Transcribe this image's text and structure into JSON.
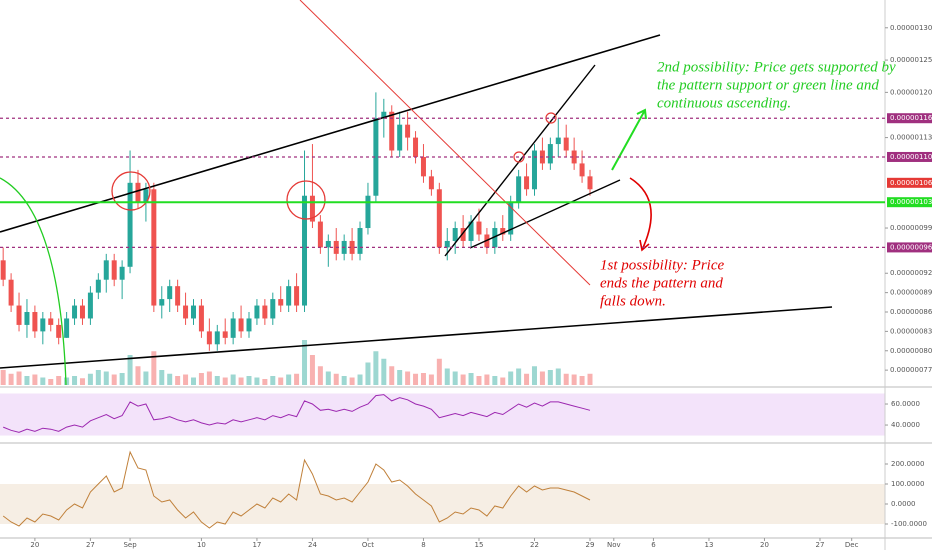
{
  "chart_data": {
    "type": "candlestick",
    "x": [
      -4,
      -3,
      -2,
      -1,
      0,
      1,
      2,
      3,
      4,
      5,
      6,
      7,
      8,
      9,
      10,
      11,
      12,
      13,
      14,
      15,
      16,
      17,
      18,
      19,
      20,
      21,
      22,
      23,
      24,
      25,
      26,
      27,
      28,
      29,
      30,
      31,
      32,
      33,
      34,
      35,
      36,
      37,
      38,
      39,
      40,
      41,
      42,
      43,
      44,
      45,
      46,
      47,
      48,
      49,
      50,
      51,
      52,
      53,
      54,
      55,
      56,
      57,
      58,
      59,
      60,
      61,
      62,
      63,
      64,
      65,
      66,
      67,
      68,
      69,
      70
    ],
    "open": [
      9.4e-07,
      9.1e-07,
      8.7e-07,
      8.4e-07,
      8.6e-07,
      8.3e-07,
      8.5e-07,
      8.4e-07,
      8.2e-07,
      8.5e-07,
      8.7e-07,
      8.5e-07,
      8.9e-07,
      9.1e-07,
      9.4e-07,
      9.1e-07,
      9.3e-07,
      1.06e-06,
      1.03e-06,
      1.05e-06,
      8.7e-07,
      8.8e-07,
      9e-07,
      8.7e-07,
      8.5e-07,
      8.7e-07,
      8.3e-07,
      8.1e-07,
      8.3e-07,
      8.2e-07,
      8.5e-07,
      8.3e-07,
      8.5e-07,
      8.7e-07,
      8.5e-07,
      8.8e-07,
      8.7e-07,
      9e-07,
      8.7e-07,
      1.04e-06,
      1e-06,
      9.6e-07,
      9.7e-07,
      9.5e-07,
      9.7e-07,
      9.5e-07,
      9.9e-07,
      1.04e-06,
      1.16e-06,
      1.17e-06,
      1.11e-06,
      1.15e-06,
      1.13e-06,
      1.1e-06,
      1.07e-06,
      1.05e-06,
      9.6e-07,
      9.7e-07,
      9.9e-07,
      9.7e-07,
      1e-06,
      9.8e-07,
      9.6e-07,
      9.9e-07,
      9.8e-07,
      1.03e-06,
      1.07e-06,
      1.05e-06,
      1.11e-06,
      1.09e-06,
      1.12e-06,
      1.13e-06,
      1.11e-06,
      1.09e-06,
      1.07e-06
    ],
    "high": [
      9.6e-07,
      9.2e-07,
      8.9e-07,
      8.8e-07,
      8.7e-07,
      8.6e-07,
      8.6e-07,
      8.5e-07,
      8.6e-07,
      8.8e-07,
      8.8e-07,
      9e-07,
      9.2e-07,
      9.5e-07,
      9.5e-07,
      9.4e-07,
      1.11e-06,
      1.08e-06,
      1.06e-06,
      1.06e-06,
      9e-07,
      9.1e-07,
      9.1e-07,
      8.9e-07,
      8.8e-07,
      8.8e-07,
      8.5e-07,
      8.4e-07,
      8.5e-07,
      8.6e-07,
      8.7e-07,
      8.6e-07,
      8.8e-07,
      8.8e-07,
      8.9e-07,
      9e-07,
      9.1e-07,
      9.2e-07,
      1.11e-06,
      1.12e-06,
      1.01e-06,
      9.8e-07,
      9.9e-07,
      9.8e-07,
      9.9e-07,
      1e-06,
      1.06e-06,
      1.2e-06,
      1.19e-06,
      1.18e-06,
      1.17e-06,
      1.17e-06,
      1.14e-06,
      1.12e-06,
      1.08e-06,
      1.06e-06,
      9.9e-07,
      1e-06,
      1.01e-06,
      1.01e-06,
      1.02e-06,
      9.9e-07,
      1e-06,
      1.01e-06,
      1.04e-06,
      1.08e-06,
      1.09e-06,
      1.12e-06,
      1.13e-06,
      1.13e-06,
      1.16e-06,
      1.15e-06,
      1.13e-06,
      1.11e-06,
      1.08e-06
    ],
    "low": [
      9e-07,
      8.6e-07,
      8.3e-07,
      8.2e-07,
      8.2e-07,
      8.1e-07,
      8.3e-07,
      8.1e-07,
      8.2e-07,
      8.4e-07,
      8.4e-07,
      8.4e-07,
      8.8e-07,
      8.9e-07,
      9e-07,
      8.8e-07,
      9.2e-07,
      1.02e-06,
      1e-06,
      8.6e-07,
      8.5e-07,
      8.6e-07,
      8.6e-07,
      8.4e-07,
      8.4e-07,
      8.2e-07,
      8e-07,
      8e-07,
      8.1e-07,
      8.1e-07,
      8.2e-07,
      8.2e-07,
      8.4e-07,
      8.4e-07,
      8.4e-07,
      8.6e-07,
      8.6e-07,
      8.6e-07,
      8.6e-07,
      9.9e-07,
      9.5e-07,
      9.3e-07,
      9.4e-07,
      9.4e-07,
      9.4e-07,
      9.4e-07,
      9.8e-07,
      1.03e-06,
      1.13e-06,
      1.1e-06,
      1.1e-06,
      1.11e-06,
      1.09e-06,
      1.06e-06,
      1.04e-06,
      9.5e-07,
      9.4e-07,
      9.5e-07,
      9.6e-07,
      9.6e-07,
      9.7e-07,
      9.5e-07,
      9.5e-07,
      9.7e-07,
      9.7e-07,
      1.02e-06,
      1.04e-06,
      1.04e-06,
      1.08e-06,
      1.08e-06,
      1.1e-06,
      1.1e-06,
      1.08e-06,
      1.06e-06,
      1.04e-06
    ],
    "close": [
      9.1e-07,
      8.7e-07,
      8.4e-07,
      8.6e-07,
      8.3e-07,
      8.5e-07,
      8.4e-07,
      8.2e-07,
      8.5e-07,
      8.7e-07,
      8.5e-07,
      8.9e-07,
      9.1e-07,
      9.4e-07,
      9.1e-07,
      9.3e-07,
      1.06e-06,
      1.03e-06,
      1.05e-06,
      8.7e-07,
      8.8e-07,
      9e-07,
      8.7e-07,
      8.5e-07,
      8.7e-07,
      8.3e-07,
      8.1e-07,
      8.3e-07,
      8.2e-07,
      8.5e-07,
      8.3e-07,
      8.5e-07,
      8.7e-07,
      8.5e-07,
      8.8e-07,
      8.7e-07,
      9e-07,
      8.7e-07,
      1.04e-06,
      1e-06,
      9.6e-07,
      9.7e-07,
      9.5e-07,
      9.7e-07,
      9.5e-07,
      9.9e-07,
      1.04e-06,
      1.16e-06,
      1.17e-06,
      1.11e-06,
      1.15e-06,
      1.13e-06,
      1.1e-06,
      1.07e-06,
      1.05e-06,
      9.6e-07,
      9.7e-07,
      9.9e-07,
      9.7e-07,
      1e-06,
      9.8e-07,
      9.6e-07,
      9.9e-07,
      9.8e-07,
      1.03e-06,
      1.07e-06,
      1.05e-06,
      1.11e-06,
      1.09e-06,
      1.12e-06,
      1.13e-06,
      1.11e-06,
      1.09e-06,
      1.07e-06,
      1.05e-06
    ],
    "colors": {
      "up": "#26a69a",
      "down": "#ef5350"
    },
    "xlim": [
      -4.4,
      107.2
    ],
    "xticks": [
      {
        "value": 0,
        "label": "20"
      },
      {
        "value": 7,
        "label": "27"
      },
      {
        "value": 12,
        "label": "Sep"
      },
      {
        "value": 21,
        "label": "10"
      },
      {
        "value": 28,
        "label": "17"
      },
      {
        "value": 35,
        "label": "24"
      },
      {
        "value": 42,
        "label": "Oct"
      },
      {
        "value": 49,
        "label": "8"
      },
      {
        "value": 56,
        "label": "15"
      },
      {
        "value": 63,
        "label": "22"
      },
      {
        "value": 70,
        "label": "29"
      },
      {
        "value": 73,
        "label": "Nov"
      },
      {
        "value": 78,
        "label": "6"
      },
      {
        "value": 85,
        "label": "13"
      },
      {
        "value": 92,
        "label": "20"
      },
      {
        "value": 99,
        "label": "27"
      },
      {
        "value": 103,
        "label": "Dec"
      }
    ],
    "ylim": [
      7.47e-07,
      1.343e-06
    ],
    "yticks": [
      {
        "value": 1.3e-06,
        "label": "0.00000130"
      },
      {
        "value": 1.25e-06,
        "label": "0.00000125"
      },
      {
        "value": 1.2e-06,
        "label": "0.00000120"
      },
      {
        "value": 1.13e-06,
        "label": "0.00000113"
      },
      {
        "value": 9.9e-07,
        "label": "0.00000099"
      },
      {
        "value": 9.2e-07,
        "label": "0.00000092"
      },
      {
        "value": 8.9e-07,
        "label": "0.00000089"
      },
      {
        "value": 8.6e-07,
        "label": "0.00000086"
      },
      {
        "value": 8.3e-07,
        "label": "0.00000083"
      },
      {
        "value": 8e-07,
        "label": "0.00000080"
      },
      {
        "value": 7.7e-07,
        "label": "0.00000077"
      }
    ],
    "price_levels": [
      {
        "value": 1.16e-06,
        "label": "0.00000116",
        "color": "#a0307f",
        "style": "dashed"
      },
      {
        "value": 1.1e-06,
        "label": "0.00000110",
        "color": "#a0307f",
        "style": "dashed"
      },
      {
        "value": 1.06e-06,
        "label": "0.00000106",
        "color": "#e53935",
        "style": "none"
      },
      {
        "value": 1.03e-06,
        "label": "0.00000103",
        "color": "#22dd22",
        "style": "solid"
      },
      {
        "value": 9.6e-07,
        "label": "0.00000096",
        "color": "#a0307f",
        "style": "dashed"
      }
    ],
    "volume": {
      "values": [
        20,
        15,
        18,
        12,
        14,
        10,
        8,
        12,
        10,
        12,
        9,
        15,
        20,
        18,
        14,
        16,
        40,
        25,
        18,
        45,
        20,
        15,
        12,
        14,
        10,
        16,
        18,
        12,
        10,
        14,
        10,
        12,
        10,
        8,
        12,
        10,
        14,
        15,
        60,
        40,
        25,
        18,
        15,
        12,
        10,
        14,
        30,
        45,
        35,
        25,
        20,
        18,
        15,
        16,
        14,
        35,
        22,
        18,
        14,
        16,
        12,
        14,
        12,
        10,
        18,
        22,
        15,
        25,
        18,
        20,
        22,
        15,
        14,
        12,
        15
      ]
    },
    "rsi": {
      "values": [
        38,
        35,
        33,
        36,
        34,
        37,
        36,
        34,
        38,
        40,
        38,
        44,
        47,
        50,
        46,
        49,
        62,
        58,
        60,
        45,
        46,
        48,
        45,
        43,
        45,
        42,
        40,
        42,
        41,
        45,
        43,
        45,
        47,
        45,
        49,
        47,
        50,
        48,
        63,
        60,
        54,
        55,
        53,
        55,
        53,
        57,
        60,
        68,
        69,
        63,
        66,
        64,
        60,
        58,
        55,
        47,
        49,
        51,
        49,
        52,
        50,
        48,
        52,
        50,
        55,
        60,
        57,
        61,
        58,
        62,
        62,
        60,
        58,
        56,
        54
      ],
      "color": "#9c27b0",
      "ylim": [
        22.9,
        74.3
      ],
      "band": [
        30,
        70
      ],
      "yticks": [
        {
          "value": 60,
          "label": "60.0000"
        },
        {
          "value": 40,
          "label": "40.0000"
        }
      ]
    },
    "cci": {
      "values": [
        -60,
        -90,
        -110,
        -70,
        -90,
        -50,
        -60,
        -80,
        -30,
        0,
        -20,
        60,
        100,
        140,
        60,
        80,
        260,
        180,
        170,
        40,
        10,
        20,
        -30,
        -70,
        -40,
        -90,
        -120,
        -90,
        -100,
        -40,
        -60,
        -30,
        0,
        -20,
        30,
        10,
        50,
        20,
        220,
        150,
        50,
        40,
        20,
        30,
        10,
        60,
        110,
        200,
        170,
        110,
        120,
        90,
        50,
        20,
        -10,
        -90,
        -70,
        -40,
        -50,
        -20,
        -30,
        -60,
        -10,
        -20,
        40,
        90,
        60,
        90,
        70,
        80,
        80,
        70,
        60,
        40,
        20
      ],
      "color": "#c0803a",
      "ylim": [
        -165,
        295
      ],
      "band": [
        -100,
        100
      ],
      "yticks": [
        {
          "value": 200,
          "label": "200.0000"
        },
        {
          "value": 100,
          "label": "100.0000"
        },
        {
          "value": 0,
          "label": "0.0000"
        },
        {
          "value": -100,
          "label": "-100.0000"
        }
      ]
    },
    "annotations": [
      {
        "lines": [
          "2nd possibility: Price gets supported by",
          "the pattern support or green line and",
          "continuous ascending."
        ],
        "color": "#22cc22"
      },
      {
        "lines": [
          "1st possibility: Price",
          "ends the pattern and",
          "falls down."
        ],
        "color": "#e00000"
      }
    ]
  }
}
